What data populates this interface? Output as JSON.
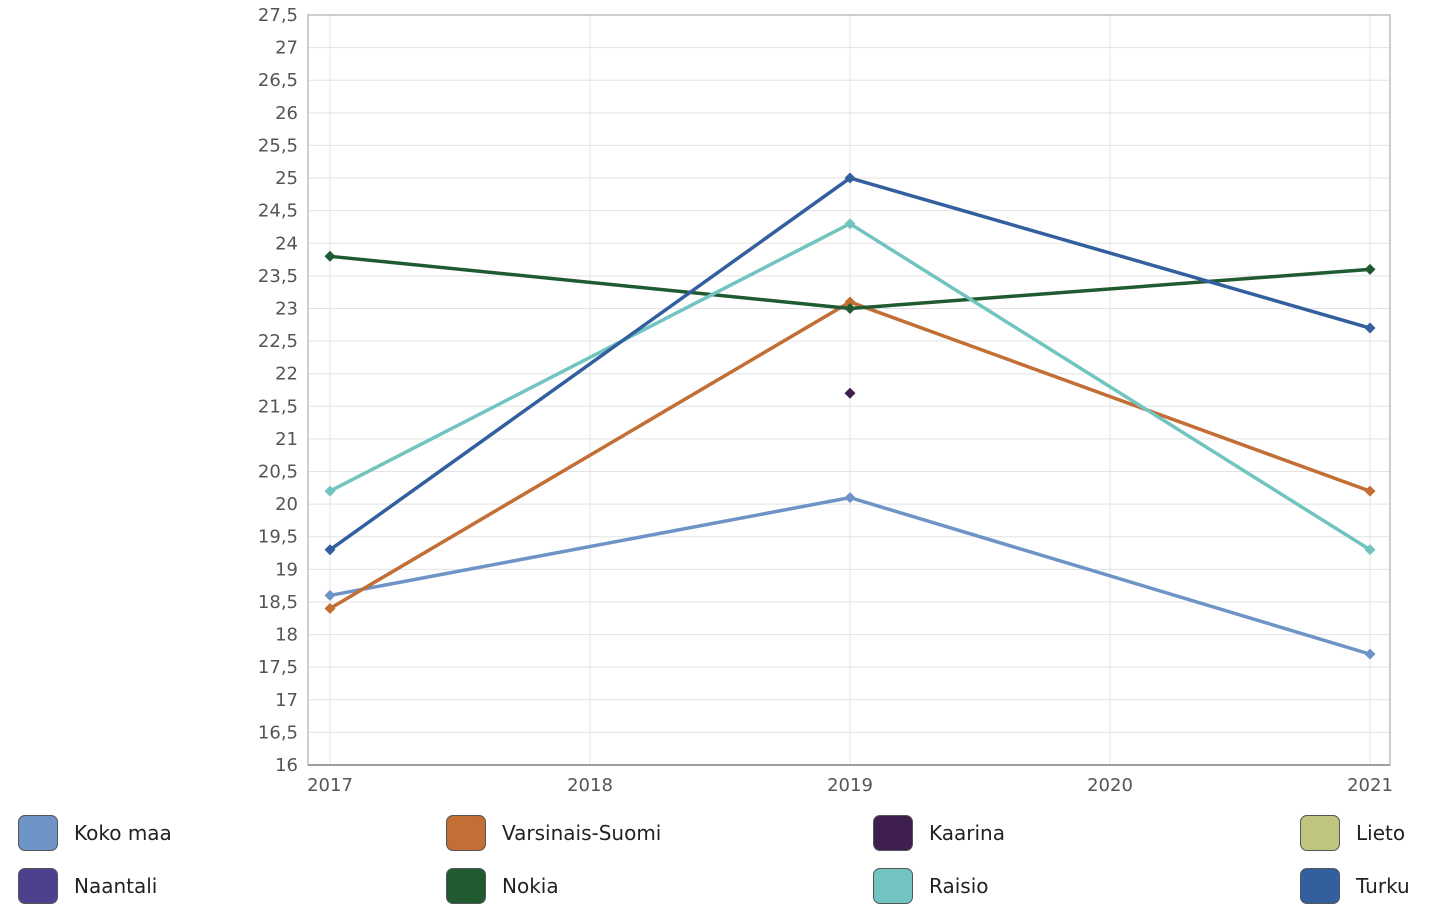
{
  "chart_data": {
    "type": "line",
    "title": "",
    "xlabel": "",
    "ylabel": "",
    "categories": [
      "2017",
      "2018",
      "2019",
      "2020",
      "2021"
    ],
    "yticks": [
      "16",
      "16,5",
      "17",
      "17,5",
      "18",
      "18,5",
      "19",
      "19,5",
      "20",
      "20,5",
      "21",
      "21,5",
      "22",
      "22,5",
      "23",
      "23,5",
      "24",
      "24,5",
      "25",
      "25,5",
      "26",
      "26,5",
      "27",
      "27,5"
    ],
    "ylim": [
      16,
      27.5
    ],
    "ystep": 0.5,
    "grid": true,
    "legend_position": "bottom",
    "series": [
      {
        "name": "Koko maa",
        "color": "#6e93c6",
        "values": [
          18.6,
          null,
          20.1,
          null,
          17.7
        ]
      },
      {
        "name": "Varsinais-Suomi",
        "color": "#c26e35",
        "values": [
          18.4,
          null,
          23.1,
          null,
          20.2
        ]
      },
      {
        "name": "Kaarina",
        "color": "#3f1f4f",
        "values": [
          null,
          null,
          21.7,
          null,
          null
        ]
      },
      {
        "name": "Lieto",
        "color": "#bfc47e",
        "values": [
          null,
          null,
          null,
          null,
          null
        ]
      },
      {
        "name": "Naantali",
        "color": "#4f3f8f",
        "values": [
          null,
          null,
          null,
          null,
          null
        ]
      },
      {
        "name": "Nokia",
        "color": "#1f5a30",
        "values": [
          23.8,
          null,
          23.0,
          null,
          23.6
        ]
      },
      {
        "name": "Raisio",
        "color": "#72c4c0",
        "values": [
          20.2,
          null,
          24.3,
          null,
          19.3
        ]
      },
      {
        "name": "Turku",
        "color": "#335f9f",
        "values": [
          19.3,
          null,
          25.0,
          null,
          22.7
        ]
      }
    ]
  }
}
